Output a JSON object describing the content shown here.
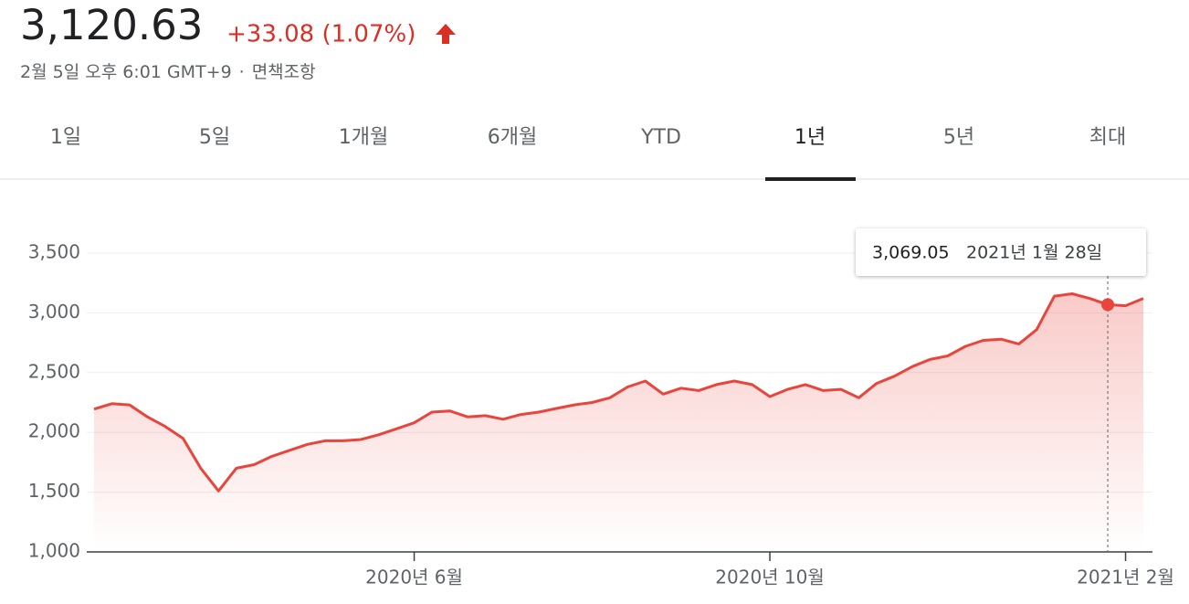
{
  "header": {
    "price": "3,120.63",
    "change": "+33.08 (1.07%)",
    "timestamp": "2월 5일 오후 6:01 GMT+9",
    "separator": "·",
    "disclaimer": "면책조항"
  },
  "tabs": {
    "items": [
      "1일",
      "5일",
      "1개월",
      "6개월",
      "YTD",
      "1년",
      "5년",
      "최대"
    ],
    "selected": 5
  },
  "chart_data": {
    "type": "line",
    "color": "#e8453c",
    "categories": [
      null,
      null,
      null,
      null,
      null,
      null,
      null,
      null,
      null,
      null,
      null,
      null,
      null,
      null,
      null,
      null,
      null,
      null,
      "2020년 6월",
      null,
      null,
      null,
      null,
      null,
      null,
      null,
      null,
      null,
      null,
      null,
      null,
      null,
      null,
      null,
      null,
      null,
      null,
      null,
      "2020년 10월",
      null,
      null,
      null,
      null,
      null,
      null,
      null,
      null,
      null,
      null,
      null,
      null,
      null,
      null,
      null,
      null,
      null,
      null,
      null,
      "2021년 2월",
      null
    ],
    "values": [
      2195,
      2240,
      2230,
      2130,
      2050,
      1950,
      1700,
      1510,
      1700,
      1730,
      1800,
      1850,
      1900,
      1930,
      1930,
      1940,
      1980,
      2030,
      2080,
      2170,
      2180,
      2130,
      2140,
      2110,
      2150,
      2170,
      2200,
      2230,
      2250,
      2290,
      2380,
      2430,
      2320,
      2370,
      2350,
      2400,
      2430,
      2400,
      2300,
      2360,
      2400,
      2350,
      2360,
      2290,
      2410,
      2470,
      2550,
      2610,
      2640,
      2720,
      2770,
      2780,
      2740,
      2860,
      3140,
      3160,
      3120,
      3069.05,
      3060,
      3120.63
    ],
    "ylim": [
      1000,
      3500
    ],
    "yticks": [
      {
        "value": 1000,
        "label": "1,000"
      },
      {
        "value": 1500,
        "label": "1,500"
      },
      {
        "value": 2000,
        "label": "2,000"
      },
      {
        "value": 2500,
        "label": "2,500"
      },
      {
        "value": 3000,
        "label": "3,000"
      },
      {
        "value": 3500,
        "label": "3,500"
      }
    ],
    "grid": true,
    "tooltip": {
      "value": 3069.05,
      "value_label": "3,069.05",
      "date": "2021년 1월 28일"
    }
  }
}
